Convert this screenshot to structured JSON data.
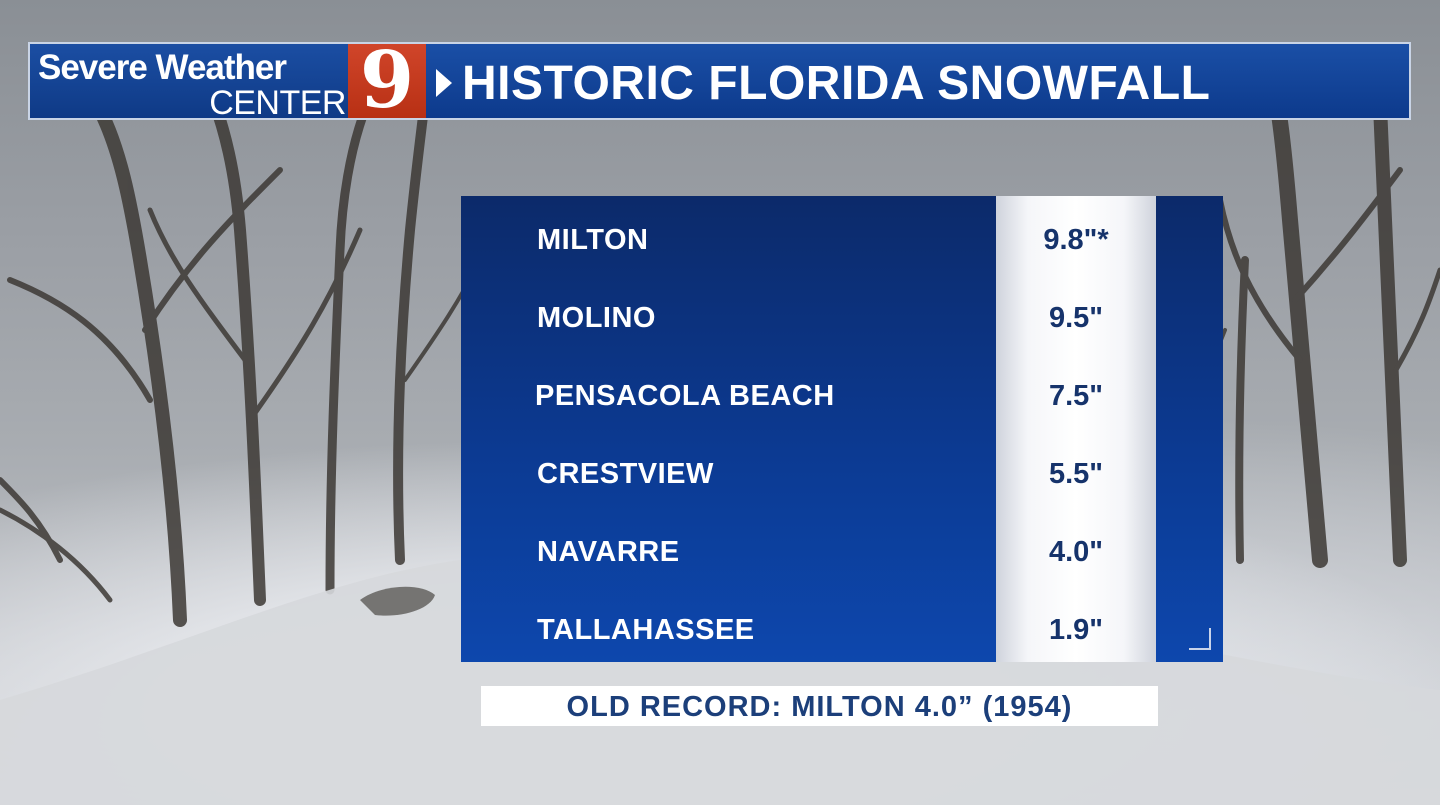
{
  "header": {
    "brand_line1": "Severe Weather",
    "brand_line2": "CENTER",
    "channel_number": "9",
    "title": "HISTORIC FLORIDA SNOWFALL"
  },
  "table": {
    "rows": [
      {
        "location": "MILTON",
        "amount": "9.8\"*"
      },
      {
        "location": "MOLINO",
        "amount": "9.5\""
      },
      {
        "location": "PENSACOLA BEACH",
        "amount": "7.5\""
      },
      {
        "location": "CRESTVIEW",
        "amount": "5.5\""
      },
      {
        "location": "NAVARRE",
        "amount": "4.0\""
      },
      {
        "location": "TALLAHASSEE",
        "amount": "1.9\""
      }
    ]
  },
  "footer": {
    "note": "OLD RECORD: MILTON 4.0” (1954)"
  },
  "colors": {
    "header_blue": "#0f3a86",
    "channel_red": "#c23a1d",
    "panel_blue": "#0c3a92",
    "value_text": "#16336b"
  },
  "icons": {
    "header_arrow": "play-triangle-icon",
    "panel_corner": "corner-bracket-icon"
  }
}
